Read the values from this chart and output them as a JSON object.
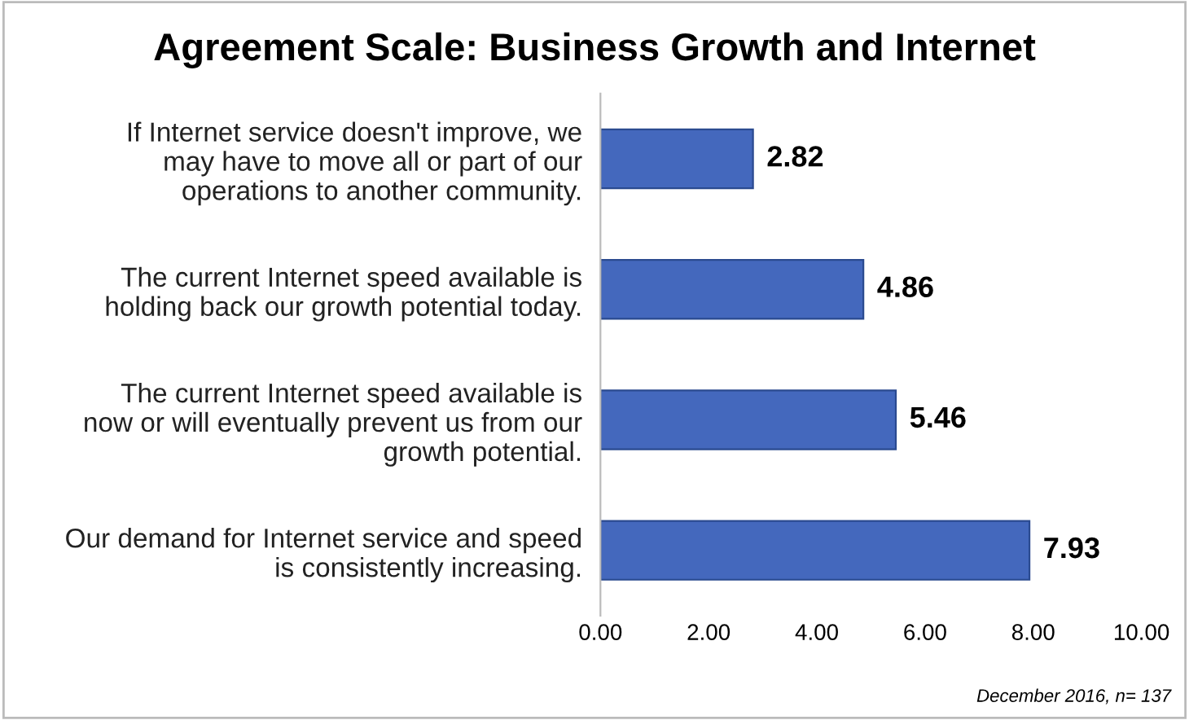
{
  "chart_data": {
    "type": "bar",
    "orientation": "horizontal",
    "title": "Agreement Scale: Business Growth and Internet",
    "categories": [
      "If Internet service doesn't improve, we may have to move all or part of our operations to another community.",
      "The current Internet speed available is holding back our growth potential today.",
      "The current Internet speed available is now or will eventually prevent us from our growth potential.",
      "Our demand for Internet service and speed is consistently increasing."
    ],
    "values": [
      2.82,
      4.86,
      5.46,
      7.93
    ],
    "value_labels": [
      "2.82",
      "4.86",
      "5.46",
      "7.93"
    ],
    "color": "#4468bd",
    "xlim": [
      0,
      10
    ],
    "xticks": [
      {
        "value": 0,
        "label": "0.00"
      },
      {
        "value": 2,
        "label": "2.00"
      },
      {
        "value": 4,
        "label": "4.00"
      },
      {
        "value": 6,
        "label": "6.00"
      },
      {
        "value": 8,
        "label": "8.00"
      },
      {
        "value": 10,
        "label": "10.00"
      }
    ],
    "grid": false,
    "annotations": [
      "December 2016, n= 137"
    ]
  }
}
